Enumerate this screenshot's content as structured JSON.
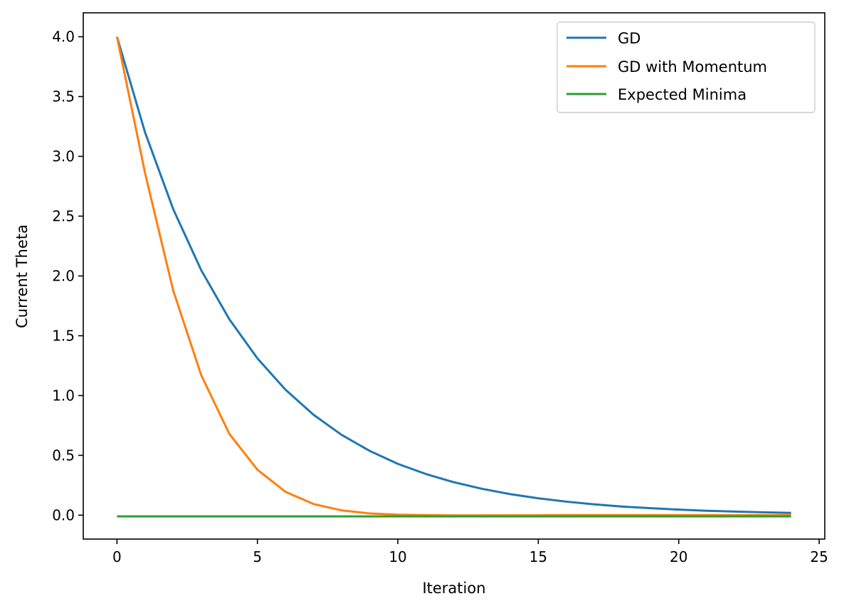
{
  "chart_data": {
    "type": "line",
    "xlabel": "Iteration",
    "ylabel": "Current Theta",
    "xlim": [
      -1.2,
      25.2
    ],
    "ylim": [
      -0.2,
      4.2
    ],
    "xticks": [
      0,
      5,
      10,
      15,
      20,
      25
    ],
    "yticks": [
      0.0,
      0.5,
      1.0,
      1.5,
      2.0,
      2.5,
      3.0,
      3.5,
      4.0
    ],
    "ytick_labels": [
      "0.0",
      "0.5",
      "1.0",
      "1.5",
      "2.0",
      "2.5",
      "3.0",
      "3.5",
      "4.0"
    ],
    "grid": false,
    "legend_position": "top-right",
    "x": [
      0,
      1,
      2,
      3,
      4,
      5,
      6,
      7,
      8,
      9,
      10,
      11,
      12,
      13,
      14,
      15,
      16,
      17,
      18,
      19,
      20,
      21,
      22,
      23,
      24
    ],
    "series": [
      {
        "name": "GD",
        "color": "#1f77b4",
        "values": [
          4.0,
          3.2,
          2.56,
          2.048,
          1.638,
          1.311,
          1.049,
          0.839,
          0.671,
          0.537,
          0.429,
          0.344,
          0.275,
          0.22,
          0.176,
          0.141,
          0.113,
          0.09,
          0.072,
          0.058,
          0.046,
          0.037,
          0.03,
          0.024,
          0.019
        ]
      },
      {
        "name": "GD with Momentum",
        "color": "#ff7f0e",
        "values": [
          4.0,
          2.86,
          1.88,
          1.17,
          0.68,
          0.38,
          0.195,
          0.093,
          0.04,
          0.014,
          0.004,
          0.0,
          -0.002,
          -0.002,
          -0.001,
          -0.001,
          0.0,
          0.0,
          0.0,
          0.0,
          0.0,
          0.0,
          0.0,
          0.0,
          0.0
        ]
      },
      {
        "name": "Expected Minima",
        "color": "#2ca02c",
        "values": [
          -0.01,
          -0.01,
          -0.01,
          -0.01,
          -0.01,
          -0.01,
          -0.01,
          -0.01,
          -0.01,
          -0.01,
          -0.01,
          -0.01,
          -0.01,
          -0.01,
          -0.01,
          -0.01,
          -0.01,
          -0.01,
          -0.01,
          -0.01,
          -0.01,
          -0.01,
          -0.01,
          -0.01,
          -0.01
        ]
      }
    ]
  }
}
